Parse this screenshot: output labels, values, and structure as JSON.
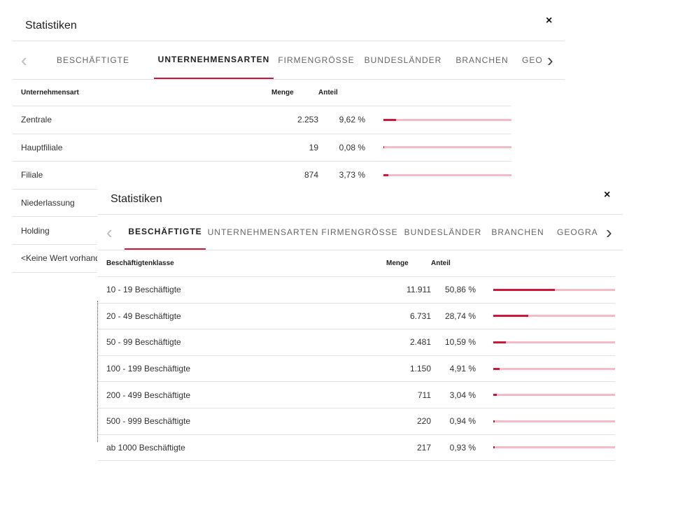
{
  "back_panel": {
    "title": "Statistiken",
    "close_glyph": "×",
    "chevron_left": "‹",
    "chevron_right": "›",
    "tabs": [
      {
        "label": "BESCHÄFTIGTE",
        "active": false
      },
      {
        "label": "UNTERNEHMENSARTEN",
        "active": true
      },
      {
        "label": "FIRMENGRÖSSE",
        "active": false
      },
      {
        "label": "BUNDESLÄNDER",
        "active": false
      },
      {
        "label": "BRANCHEN",
        "active": false
      },
      {
        "label": "GEOGRAP",
        "active": false
      }
    ],
    "table": {
      "headers": {
        "name": "Unternehmensart",
        "menge": "Menge",
        "anteil": "Anteil"
      },
      "rows": [
        {
          "name": "Zentrale",
          "menge": "2.253",
          "anteil": "9,62 %",
          "share": 9.62
        },
        {
          "name": "Hauptfiliale",
          "menge": "19",
          "anteil": "0,08 %",
          "share": 0.08
        },
        {
          "name": "Filiale",
          "menge": "874",
          "anteil": "3,73 %",
          "share": 3.73
        },
        {
          "name": "Niederlassung",
          "menge": "",
          "anteil": "",
          "share": null
        },
        {
          "name": "Holding",
          "menge": "",
          "anteil": "",
          "share": null
        },
        {
          "name": "<Keine Wert vorhande",
          "menge": "",
          "anteil": "",
          "share": null
        }
      ]
    }
  },
  "front_panel": {
    "title": "Statistiken",
    "close_glyph": "×",
    "chevron_left": "‹",
    "chevron_right": "›",
    "tabs": [
      {
        "label": "BESCHÄFTIGTE",
        "active": true
      },
      {
        "label": "UNTERNEHMENSARTEN",
        "active": false
      },
      {
        "label": "FIRMENGRÖSSE",
        "active": false
      },
      {
        "label": "BUNDESLÄNDER",
        "active": false
      },
      {
        "label": "BRANCHEN",
        "active": false
      },
      {
        "label": "GEOGRAP",
        "active": false
      }
    ],
    "table": {
      "headers": {
        "name": "Beschäftigtenklasse",
        "menge": "Menge",
        "anteil": "Anteil"
      },
      "rows": [
        {
          "name": "10 - 19 Beschäftigte",
          "menge": "11.911",
          "anteil": "50,86 %",
          "share": 50.86
        },
        {
          "name": "20 - 49 Beschäftigte",
          "menge": "6.731",
          "anteil": "28,74 %",
          "share": 28.74
        },
        {
          "name": "50 - 99 Beschäftigte",
          "menge": "2.481",
          "anteil": "10,59 %",
          "share": 10.59
        },
        {
          "name": "100 - 199 Beschäftigte",
          "menge": "1.150",
          "anteil": "4,91 %",
          "share": 4.91
        },
        {
          "name": "200 - 499 Beschäftigte",
          "menge": "711",
          "anteil": "3,04 %",
          "share": 3.04
        },
        {
          "name": "500 - 999 Beschäftigte",
          "menge": "220",
          "anteil": "0,94 %",
          "share": 0.94
        },
        {
          "name": "ab 1000 Beschäftigte",
          "menge": "217",
          "anteil": "0,93 %",
          "share": 0.93
        }
      ]
    }
  },
  "colors": {
    "accent": "#d2153a",
    "bar_track": "#f7b9c6",
    "divider": "#e2e2e2"
  }
}
